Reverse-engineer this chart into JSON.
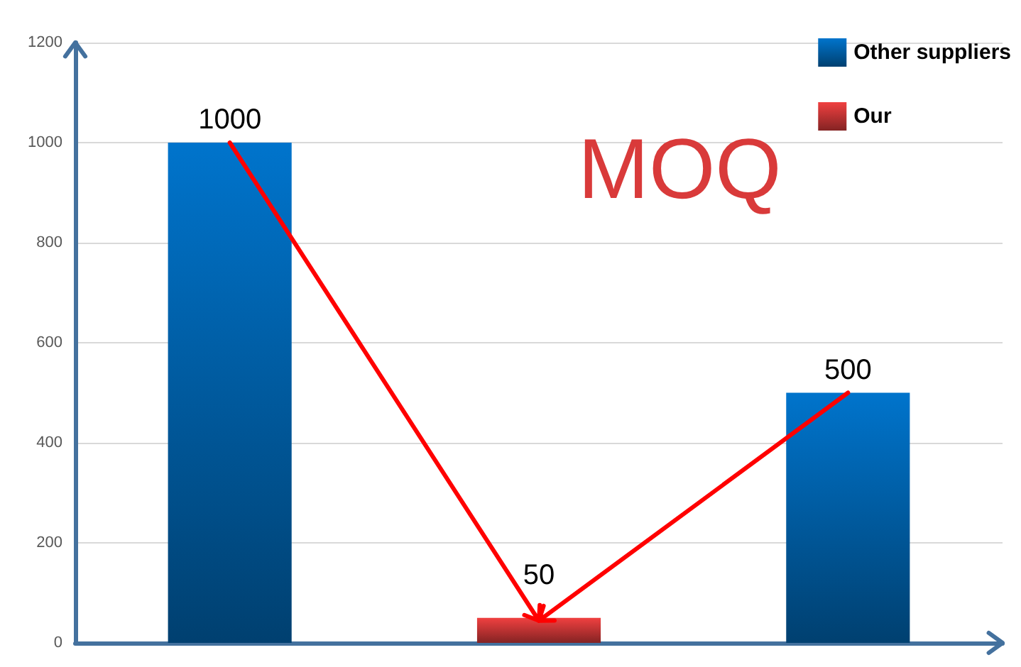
{
  "chart_data": {
    "type": "bar",
    "title": "MOQ",
    "categories": [
      null,
      null,
      null
    ],
    "series": [
      {
        "name": "Other suppliers",
        "color": "#0074cc",
        "values": [
          1000,
          null,
          500
        ]
      },
      {
        "name": "Our",
        "color": "#f04040",
        "values": [
          null,
          50,
          null
        ]
      }
    ],
    "ylim": [
      0,
      1200
    ],
    "yticks": [
      0,
      200,
      400,
      600,
      800,
      1000,
      1200
    ],
    "grid": "y",
    "legend": "top right",
    "data_labels": true
  }
}
